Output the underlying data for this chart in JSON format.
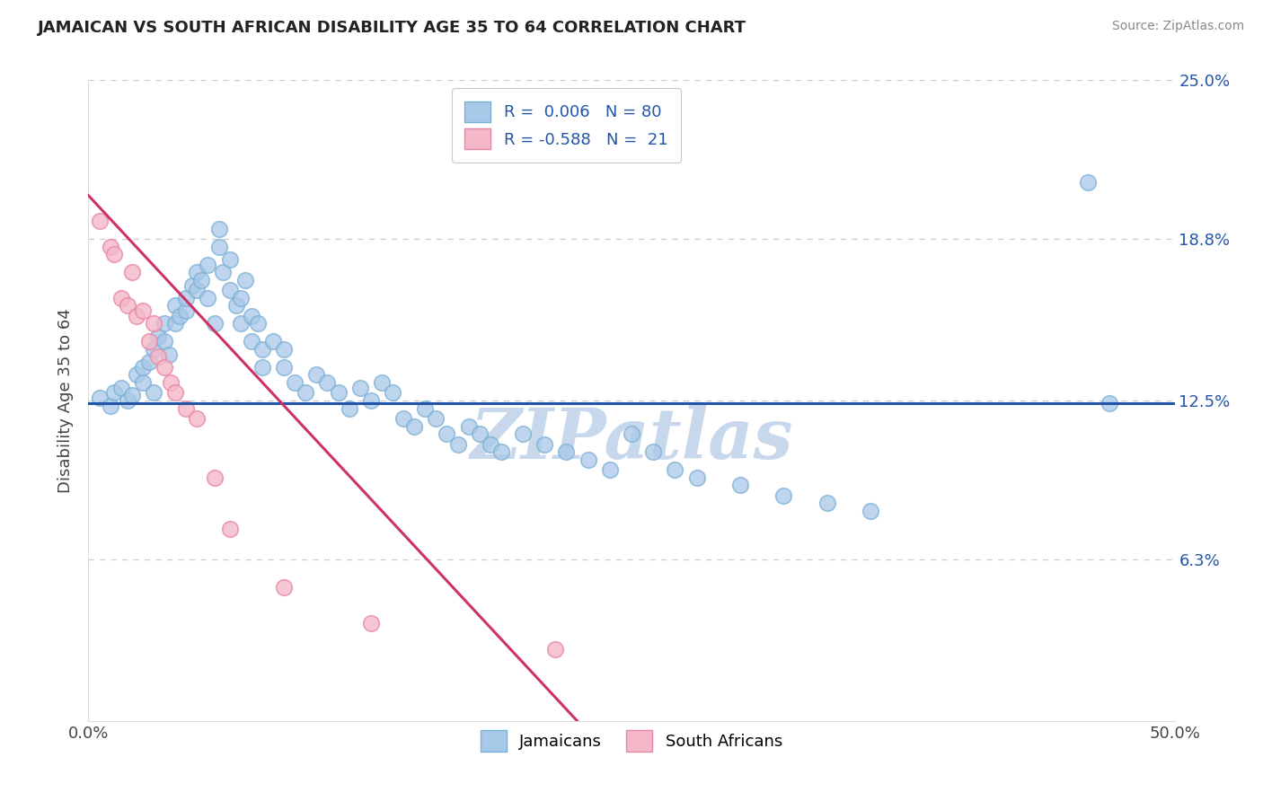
{
  "title": "JAMAICAN VS SOUTH AFRICAN DISABILITY AGE 35 TO 64 CORRELATION CHART",
  "source": "Source: ZipAtlas.com",
  "ylabel": "Disability Age 35 to 64",
  "xlim": [
    0.0,
    0.5
  ],
  "ylim": [
    0.0,
    0.25
  ],
  "ytick_values": [
    0.063,
    0.125,
    0.188,
    0.25
  ],
  "ytick_labels": [
    "6.3%",
    "12.5%",
    "18.8%",
    "25.0%"
  ],
  "xtick_positions": [
    0.0,
    0.5
  ],
  "xtick_labels": [
    "0.0%",
    "50.0%"
  ],
  "jamaicans_R": 0.006,
  "jamaicans_N": 80,
  "south_africans_R": -0.588,
  "south_africans_N": 21,
  "blue_color": "#a8c8e8",
  "blue_edge_color": "#7ab0d4",
  "blue_line_color": "#2255aa",
  "pink_color": "#f4b8c8",
  "pink_edge_color": "#e888a8",
  "pink_line_color": "#cc3366",
  "background_color": "#ffffff",
  "watermark": "ZIPatlas",
  "watermark_color": "#c8d8ec",
  "legend_text_color": "#2255aa",
  "right_tick_color": "#2255aa",
  "blue_line_y": 0.124,
  "pink_line_x0": 0.0,
  "pink_line_y0": 0.205,
  "pink_line_x1": 0.225,
  "pink_line_y1": 0.0,
  "jamaicans_x": [
    0.005,
    0.01,
    0.012,
    0.015,
    0.018,
    0.02,
    0.022,
    0.025,
    0.025,
    0.028,
    0.03,
    0.03,
    0.032,
    0.035,
    0.035,
    0.037,
    0.04,
    0.04,
    0.042,
    0.045,
    0.045,
    0.048,
    0.05,
    0.05,
    0.052,
    0.055,
    0.055,
    0.058,
    0.06,
    0.06,
    0.062,
    0.065,
    0.065,
    0.068,
    0.07,
    0.07,
    0.072,
    0.075,
    0.075,
    0.078,
    0.08,
    0.08,
    0.085,
    0.09,
    0.09,
    0.095,
    0.1,
    0.105,
    0.11,
    0.115,
    0.12,
    0.125,
    0.13,
    0.135,
    0.14,
    0.145,
    0.15,
    0.155,
    0.16,
    0.165,
    0.17,
    0.175,
    0.18,
    0.185,
    0.19,
    0.2,
    0.21,
    0.22,
    0.23,
    0.24,
    0.25,
    0.26,
    0.27,
    0.28,
    0.3,
    0.32,
    0.34,
    0.36,
    0.46,
    0.47
  ],
  "jamaicans_y": [
    0.126,
    0.123,
    0.128,
    0.13,
    0.125,
    0.127,
    0.135,
    0.132,
    0.138,
    0.14,
    0.128,
    0.145,
    0.15,
    0.148,
    0.155,
    0.143,
    0.155,
    0.162,
    0.158,
    0.16,
    0.165,
    0.17,
    0.168,
    0.175,
    0.172,
    0.178,
    0.165,
    0.155,
    0.185,
    0.192,
    0.175,
    0.18,
    0.168,
    0.162,
    0.155,
    0.165,
    0.172,
    0.158,
    0.148,
    0.155,
    0.145,
    0.138,
    0.148,
    0.145,
    0.138,
    0.132,
    0.128,
    0.135,
    0.132,
    0.128,
    0.122,
    0.13,
    0.125,
    0.132,
    0.128,
    0.118,
    0.115,
    0.122,
    0.118,
    0.112,
    0.108,
    0.115,
    0.112,
    0.108,
    0.105,
    0.112,
    0.108,
    0.105,
    0.102,
    0.098,
    0.112,
    0.105,
    0.098,
    0.095,
    0.092,
    0.088,
    0.085,
    0.082,
    0.21,
    0.124
  ],
  "south_africans_x": [
    0.005,
    0.01,
    0.012,
    0.015,
    0.018,
    0.02,
    0.022,
    0.025,
    0.028,
    0.03,
    0.032,
    0.035,
    0.038,
    0.04,
    0.045,
    0.05,
    0.058,
    0.065,
    0.09,
    0.13,
    0.215
  ],
  "south_africans_y": [
    0.195,
    0.185,
    0.182,
    0.165,
    0.162,
    0.175,
    0.158,
    0.16,
    0.148,
    0.155,
    0.142,
    0.138,
    0.132,
    0.128,
    0.122,
    0.118,
    0.095,
    0.075,
    0.052,
    0.038,
    0.028
  ]
}
